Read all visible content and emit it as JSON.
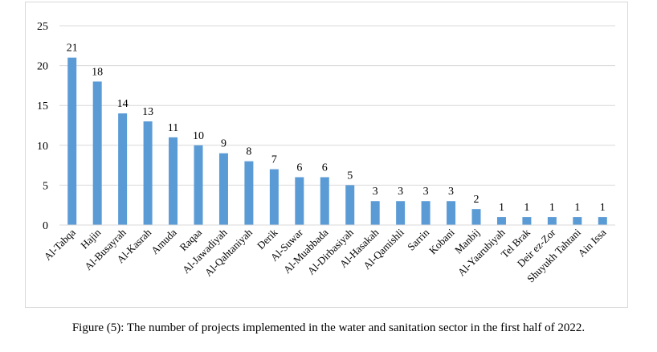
{
  "caption": "Figure (5): The number of projects implemented in the water and sanitation sector in the first half of 2022.",
  "chart_data": {
    "type": "bar",
    "title": "",
    "xlabel": "",
    "ylabel": "",
    "ylim": [
      0,
      25
    ],
    "yticks": [
      0,
      5,
      10,
      15,
      20,
      25
    ],
    "grid": true,
    "bar_color": "#5b9bd5",
    "grid_color": "#d9d9d9",
    "categories": [
      "Al-Tabqa",
      "Hajin",
      "Al-Busayrah",
      "Al-Kasrah",
      "Amuda",
      "Raqaa",
      "Al-Jawadiyah",
      "Al-Qahtaniyah",
      "Derik",
      "Al-Suwar",
      "Al-Muabbada",
      "Al-Dirbasiyah",
      "Al-Hasakah",
      "Al-Qamishli",
      "Sarrin",
      "Kobani",
      "Manbij",
      "Al-Yaarubiyah",
      "Tel Brak",
      "Deir ez-Zor",
      "Shuyukh Tahtani",
      "Ain Issa"
    ],
    "values": [
      21,
      18,
      14,
      13,
      11,
      10,
      9,
      8,
      7,
      6,
      6,
      5,
      3,
      3,
      3,
      3,
      2,
      1,
      1,
      1,
      1,
      1
    ]
  }
}
